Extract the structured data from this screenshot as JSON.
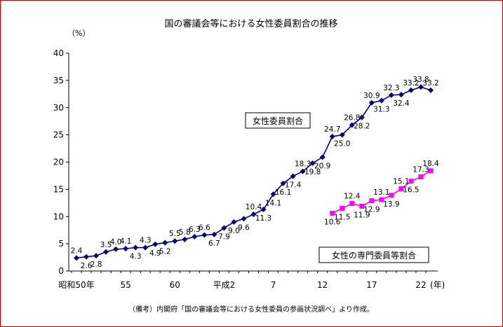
{
  "chart_data": {
    "type": "line",
    "title": "国の審議会等における女性委員割合の推移",
    "y_unit": "（%）",
    "x_unit": "(年)",
    "ylim": [
      0,
      40
    ],
    "y_ticks": [
      "0",
      "5",
      "10",
      "15",
      "20",
      "25",
      "30",
      "35",
      "40"
    ],
    "x_ticks": [
      {
        "year": 1975,
        "label": "昭和50年"
      },
      {
        "year": 1980,
        "label": "55"
      },
      {
        "year": 1985,
        "label": "60"
      },
      {
        "year": 1990,
        "label": "平成2"
      },
      {
        "year": 1995,
        "label": "7"
      },
      {
        "year": 2000,
        "label": "12"
      },
      {
        "year": 2005,
        "label": "17"
      },
      {
        "year": 2010,
        "label": "22"
      }
    ],
    "x_range": [
      1974,
      2011
    ],
    "grid": false,
    "series": [
      {
        "name": "女性委員割合",
        "color": "#000080",
        "marker": "diamond",
        "points": [
          {
            "x": 1975,
            "y": 2.4,
            "label": "2.4",
            "pos": "above"
          },
          {
            "x": 1976,
            "y": 2.6,
            "label": "2.6",
            "pos": "below"
          },
          {
            "x": 1977,
            "y": 2.8,
            "label": "2.8",
            "pos": "below"
          },
          {
            "x": 1978,
            "y": 3.5,
            "label": "3.5",
            "pos": "above"
          },
          {
            "x": 1979,
            "y": 4.0,
            "label": "4.0",
            "pos": "above"
          },
          {
            "x": 1980,
            "y": 4.1,
            "label": "4.1",
            "pos": "above"
          },
          {
            "x": 1981,
            "y": 4.3,
            "label": "4.3",
            "pos": "below"
          },
          {
            "x": 1982,
            "y": 4.3,
            "label": "4.3",
            "pos": "above"
          },
          {
            "x": 1983,
            "y": 4.9,
            "label": "4.9",
            "pos": "below"
          },
          {
            "x": 1984,
            "y": 5.2,
            "label": "5.2",
            "pos": "below"
          },
          {
            "x": 1985,
            "y": 5.5,
            "label": "5.5",
            "pos": "above"
          },
          {
            "x": 1986,
            "y": 5.8,
            "label": "5.8",
            "pos": "above"
          },
          {
            "x": 1987,
            "y": 6.3,
            "label": "6.3",
            "pos": "above"
          },
          {
            "x": 1988,
            "y": 6.6,
            "label": "6.6",
            "pos": "above"
          },
          {
            "x": 1989,
            "y": 6.7,
            "label": "6.7",
            "pos": "below"
          },
          {
            "x": 1990,
            "y": 7.9,
            "label": "7.9",
            "pos": "below"
          },
          {
            "x": 1991,
            "y": 9.0,
            "label": "9.0",
            "pos": "below"
          },
          {
            "x": 1992,
            "y": 9.6,
            "label": "9.6",
            "pos": "below"
          },
          {
            "x": 1993,
            "y": 10.4,
            "label": "10.4",
            "pos": "above"
          },
          {
            "x": 1994,
            "y": 11.3,
            "label": "11.3",
            "pos": "below"
          },
          {
            "x": 1995,
            "y": 14.1,
            "label": "14.1",
            "pos": "below"
          },
          {
            "x": 1996,
            "y": 16.1,
            "label": "16.1",
            "pos": "below"
          },
          {
            "x": 1997,
            "y": 17.4,
            "label": "17.4",
            "pos": "below"
          },
          {
            "x": 1998,
            "y": 18.3,
            "label": "18.3",
            "pos": "above"
          },
          {
            "x": 1999,
            "y": 19.8,
            "label": "19.8",
            "pos": "below"
          },
          {
            "x": 2000,
            "y": 20.9,
            "label": "20.9",
            "pos": "below"
          },
          {
            "x": 2001,
            "y": 24.7,
            "label": "24.7",
            "pos": "above"
          },
          {
            "x": 2002,
            "y": 25.0,
            "label": "25.0",
            "pos": "below"
          },
          {
            "x": 2003,
            "y": 26.8,
            "label": "26.8",
            "pos": "above"
          },
          {
            "x": 2004,
            "y": 28.2,
            "label": "28.2",
            "pos": "below"
          },
          {
            "x": 2005,
            "y": 30.9,
            "label": "30.9",
            "pos": "above"
          },
          {
            "x": 2006,
            "y": 31.3,
            "label": "31.3",
            "pos": "below"
          },
          {
            "x": 2007,
            "y": 32.3,
            "label": "32.3",
            "pos": "above"
          },
          {
            "x": 2008,
            "y": 32.4,
            "label": "32.4",
            "pos": "below"
          },
          {
            "x": 2009,
            "y": 33.2,
            "label": "33.2",
            "pos": "above"
          },
          {
            "x": 2010,
            "y": 33.8,
            "label": "33.8",
            "pos": "above"
          },
          {
            "x": 2011,
            "y": 33.2,
            "label": "33.2",
            "pos": "above"
          }
        ]
      },
      {
        "name": "女性の専門委員等割合",
        "color": "#ff00ff",
        "marker": "square",
        "points": [
          {
            "x": 2001,
            "y": 10.6,
            "label": "10.6",
            "pos": "below"
          },
          {
            "x": 2002,
            "y": 11.5,
            "label": "11.5",
            "pos": "below"
          },
          {
            "x": 2003,
            "y": 12.4,
            "label": "12.4",
            "pos": "above"
          },
          {
            "x": 2004,
            "y": 11.9,
            "label": "11.9",
            "pos": "below"
          },
          {
            "x": 2005,
            "y": 12.9,
            "label": "12.9",
            "pos": "below"
          },
          {
            "x": 2006,
            "y": 13.1,
            "label": "13.1",
            "pos": "above"
          },
          {
            "x": 2007,
            "y": 13.9,
            "label": "13.9",
            "pos": "below"
          },
          {
            "x": 2008,
            "y": 15.1,
            "label": "15.1",
            "pos": "above"
          },
          {
            "x": 2009,
            "y": 16.5,
            "label": "16.5",
            "pos": "below"
          },
          {
            "x": 2010,
            "y": 17.3,
            "label": "17.3",
            "pos": "above"
          },
          {
            "x": 2011,
            "y": 18.4,
            "label": "18.4",
            "pos": "above"
          }
        ]
      }
    ],
    "source": "（備考）内閣府「国の審議会等における女性委員の参画状況調べ」より作成。"
  }
}
